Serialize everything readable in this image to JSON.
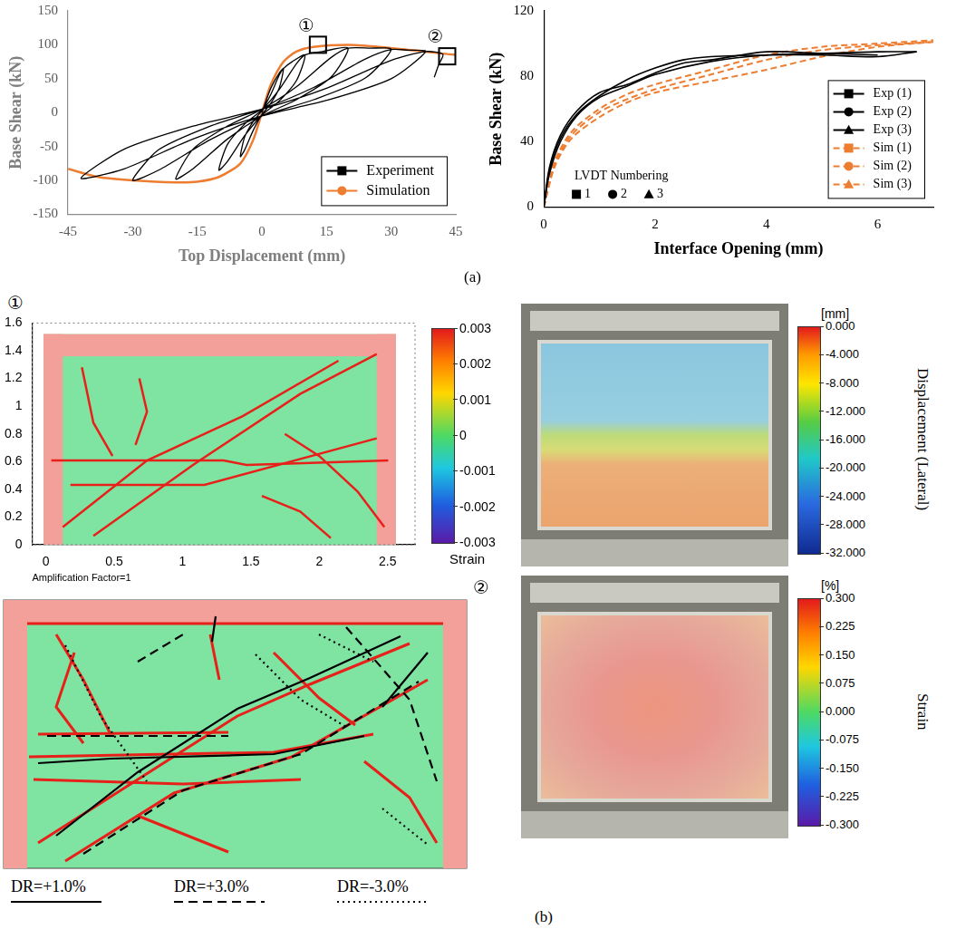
{
  "chart_data": [
    {
      "type": "line",
      "x_label": "Top Displacement (mm)",
      "y_label": "Base Shear (kN)",
      "xlim": [
        -45,
        45
      ],
      "xticks": [
        -45,
        -30,
        -15,
        0,
        15,
        30,
        45
      ],
      "ylim": [
        -150,
        150
      ],
      "yticks": [
        -150,
        -100,
        -50,
        0,
        50,
        100,
        150
      ],
      "grid": false,
      "legend": "lower right",
      "series": [
        {
          "name": "Experiment",
          "color": "#000000",
          "marker": "square",
          "line_style": "solid",
          "x": [
            0,
            2,
            4,
            5,
            4,
            2,
            0,
            -2,
            -4,
            -5,
            -4,
            -2,
            0,
            2,
            4,
            5,
            7,
            10,
            8,
            4,
            0,
            -4,
            -8,
            -10,
            -8,
            -4,
            0,
            4,
            8,
            10,
            14,
            20,
            16,
            8,
            0,
            -8,
            -16,
            -20,
            -16,
            -8,
            0,
            8,
            16,
            20,
            25,
            30,
            24,
            12,
            0,
            -12,
            -24,
            -30,
            -24,
            -12,
            0,
            12,
            24,
            30,
            34,
            38,
            30,
            15,
            0,
            -16,
            -32,
            -42,
            -32,
            -16,
            0,
            15,
            30,
            38,
            42,
            41,
            40
          ],
          "values": [
            0,
            35,
            58,
            65,
            36,
            13,
            -3,
            -26,
            -55,
            -65,
            -36,
            -13,
            3,
            26,
            55,
            65,
            75,
            85,
            47,
            17,
            -4,
            -34,
            -72,
            -85,
            -47,
            -17,
            4,
            34,
            72,
            85,
            90,
            95,
            52,
            19,
            -5,
            -39,
            -83,
            -98,
            -54,
            -20,
            5,
            38,
            81,
            95,
            95,
            93,
            51,
            19,
            -5,
            -40,
            -85,
            -100,
            -55,
            -20,
            5,
            37,
            79,
            93,
            92,
            90,
            50,
            18,
            -5,
            -39,
            -83,
            -97,
            -54,
            -20,
            5,
            36,
            77,
            90,
            86,
            70,
            52
          ]
        },
        {
          "name": "Simulation",
          "color": "#ed7d31",
          "marker": "circle",
          "line_style": "solid",
          "x": [
            -45,
            -38,
            -30,
            -20,
            -15,
            -10,
            -5,
            -2,
            0,
            2,
            5,
            8,
            12,
            20,
            27,
            35,
            42,
            45
          ],
          "values": [
            -83,
            -95,
            -100,
            -103,
            -102,
            -95,
            -75,
            -40,
            0,
            40,
            75,
            90,
            97,
            100,
            97,
            92,
            87,
            85
          ]
        }
      ],
      "annotations": [
        {
          "text": "①",
          "x": 13,
          "y": 100
        },
        {
          "text": "②",
          "x": 43,
          "y": 83
        }
      ]
    },
    {
      "type": "line",
      "x_label": "Interface Opening (mm)",
      "y_label": "Base Shear (kN)",
      "xlim": [
        0,
        7
      ],
      "xticks": [
        0,
        2,
        4,
        6
      ],
      "ylim": [
        0,
        120
      ],
      "yticks": [
        0,
        40,
        80,
        120
      ],
      "grid": false,
      "legend": "lower right",
      "series": [
        {
          "name": "Exp (1)",
          "color": "#000000",
          "marker": "square",
          "line_style": "solid",
          "x": [
            0,
            0.1,
            0.3,
            0.6,
            1,
            1.5,
            2,
            2.5,
            3,
            4,
            5,
            6,
            6.7
          ],
          "values": [
            0,
            22,
            42,
            57,
            68,
            78,
            85,
            90,
            92,
            93,
            93,
            92,
            95
          ]
        },
        {
          "name": "Exp (2)",
          "color": "#000000",
          "marker": "circle",
          "line_style": "solid",
          "x": [
            0,
            0.1,
            0.3,
            0.6,
            1,
            1.5,
            2,
            2.5,
            3,
            4,
            5,
            6
          ],
          "values": [
            0,
            24,
            44,
            59,
            70,
            75,
            82,
            88,
            90,
            95,
            94,
            93
          ]
        },
        {
          "name": "Exp (3)",
          "color": "#000000",
          "marker": "triangle",
          "line_style": "solid",
          "x": [
            0,
            0.1,
            0.3,
            0.6,
            1,
            1.5,
            2,
            3,
            4,
            5,
            6,
            6.7
          ],
          "values": [
            0,
            20,
            40,
            56,
            67,
            74,
            81,
            89,
            93,
            94,
            95,
            95
          ]
        },
        {
          "name": "Sim (1)",
          "color": "#ed7d31",
          "marker": "square",
          "line_style": "dashed",
          "x": [
            0,
            0.2,
            0.5,
            1,
            1.5,
            2,
            3,
            4,
            5,
            6,
            7
          ],
          "values": [
            0,
            25,
            42,
            55,
            64,
            70,
            77,
            84,
            92,
            98,
            101
          ]
        },
        {
          "name": "Sim (2)",
          "color": "#ed7d31",
          "marker": "circle",
          "line_style": "dashed",
          "x": [
            0,
            0.2,
            0.5,
            1,
            1.5,
            2,
            3,
            4,
            5,
            6,
            7
          ],
          "values": [
            0,
            28,
            46,
            60,
            69,
            75,
            84,
            93,
            98,
            100,
            102
          ]
        },
        {
          "name": "Sim (3)",
          "color": "#ed7d31",
          "marker": "triangle",
          "line_style": "dashed",
          "x": [
            0,
            0.2,
            0.5,
            1,
            1.5,
            2,
            3,
            4,
            5,
            6,
            7
          ],
          "values": [
            0,
            26,
            44,
            58,
            66,
            72,
            81,
            90,
            96,
            99,
            101
          ]
        }
      ],
      "annotations": [
        {
          "text": "LVDT Numbering",
          "markers": [
            "square",
            "circle",
            "triangle"
          ],
          "labels": [
            "1",
            "2",
            "3"
          ]
        }
      ]
    }
  ],
  "figure_labels": {
    "a": "(a)",
    "b": "(b)"
  },
  "fe_panel_1": {
    "marker": "①",
    "x_label": "Amplification Factor=1",
    "xlim": [
      -0.1,
      2.7
    ],
    "xticks": [
      0,
      0.5,
      1,
      1.5,
      2,
      2.5
    ],
    "ylim": [
      0,
      1.6
    ],
    "yticks": [
      0,
      0.2,
      0.4,
      0.6,
      0.8,
      1,
      1.2,
      1.4,
      1.6
    ],
    "colorbar": {
      "title": "Strain",
      "range": [
        -0.003,
        0.003
      ],
      "ticks": [
        0.003,
        0.002,
        0.001,
        0,
        -0.001,
        -0.002,
        -0.003
      ]
    }
  },
  "photo_panel_1": {
    "colorbar": {
      "unit": "[mm]",
      "title": "Displacement (Lateral)",
      "range": [
        -32,
        0
      ],
      "ticks": [
        {
          "value": 0,
          "label": "0.000"
        },
        {
          "value": -4,
          "label": "-4.000"
        },
        {
          "value": -8,
          "label": "-8.000"
        },
        {
          "value": -12,
          "label": "-12.000"
        },
        {
          "value": -16,
          "label": "-16.000"
        },
        {
          "value": -20,
          "label": "-20.000"
        },
        {
          "value": -24,
          "label": "-24.000"
        },
        {
          "value": -28,
          "label": "-28.000"
        },
        {
          "value": -32,
          "label": "-32.000"
        }
      ]
    }
  },
  "fe_panel_2": {
    "marker": "②"
  },
  "photo_panel_2": {
    "colorbar": {
      "unit": "[%]",
      "title": "Strain",
      "range": [
        -0.3,
        0.3
      ],
      "ticks": [
        {
          "value": 0.3,
          "label": "0.300"
        },
        {
          "value": 0.225,
          "label": "0.225"
        },
        {
          "value": 0.15,
          "label": "0.150"
        },
        {
          "value": 0.075,
          "label": "0.075"
        },
        {
          "value": 0,
          "label": "0.000"
        },
        {
          "value": -0.075,
          "label": "-0.075"
        },
        {
          "value": -0.15,
          "label": "-0.150"
        },
        {
          "value": -0.225,
          "label": "-0.225"
        },
        {
          "value": -0.3,
          "label": "-0.300"
        }
      ]
    }
  },
  "crack_legend": [
    {
      "text": "DR=+1.0%",
      "line_style": "solid"
    },
    {
      "text": "DR=+3.0%",
      "line_style": "dashed"
    },
    {
      "text": "DR=-3.0%",
      "line_style": "dotted"
    }
  ]
}
